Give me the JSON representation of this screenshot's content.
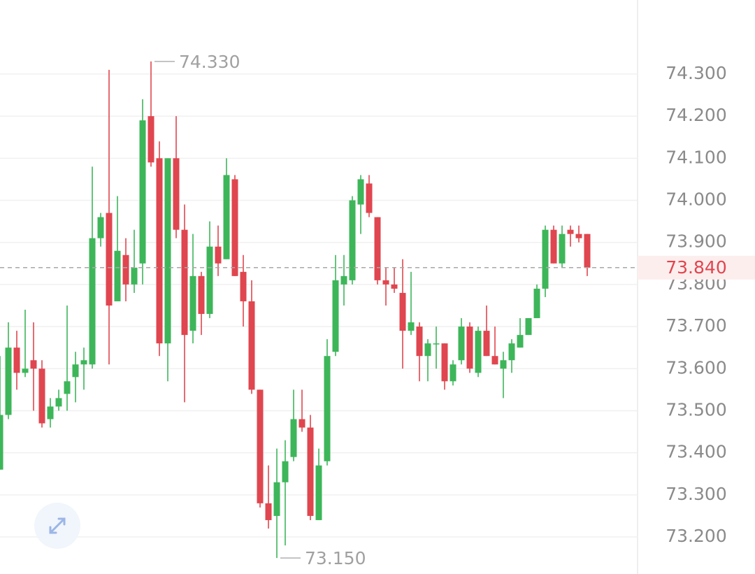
{
  "chart_data": {
    "type": "candlestick",
    "open": [
      73.36,
      73.49,
      73.65,
      73.59,
      73.62,
      73.6,
      73.48,
      73.51,
      73.54,
      73.58,
      73.61,
      73.61,
      73.91,
      73.97,
      73.76,
      73.87,
      73.8,
      73.85,
      74.2,
      74.1,
      73.66,
      74.1,
      73.93,
      73.69,
      73.82,
      73.73,
      73.89,
      73.86,
      74.05,
      73.83,
      73.76,
      73.55,
      73.28,
      73.25,
      73.33,
      73.39,
      73.48,
      73.46,
      73.24,
      73.38,
      73.64,
      73.8,
      73.81,
      73.99,
      74.04,
      73.96,
      73.81,
      73.8,
      73.78,
      73.69,
      73.7,
      73.63,
      73.66,
      73.66,
      73.57,
      73.62,
      73.7,
      73.59,
      73.69,
      73.63,
      73.6,
      73.62,
      73.65,
      73.68,
      73.72,
      73.79,
      73.93,
      73.85,
      73.93,
      73.92,
      73.92
    ],
    "high": [
      73.63,
      73.71,
      73.69,
      73.74,
      73.71,
      73.62,
      73.53,
      73.55,
      73.75,
      73.64,
      73.65,
      74.08,
      73.97,
      74.31,
      74.01,
      73.91,
      73.93,
      74.24,
      74.33,
      74.14,
      74.1,
      74.2,
      73.99,
      73.92,
      73.83,
      73.95,
      73.94,
      74.1,
      74.06,
      73.87,
      73.81,
      73.55,
      73.37,
      73.41,
      73.43,
      73.55,
      73.55,
      73.49,
      73.41,
      73.67,
      73.87,
      73.87,
      74.01,
      74.06,
      74.06,
      73.96,
      73.84,
      73.84,
      73.86,
      73.83,
      73.71,
      73.67,
      73.7,
      73.66,
      73.62,
      73.72,
      73.71,
      73.7,
      73.75,
      73.7,
      73.64,
      73.67,
      73.72,
      73.72,
      73.8,
      73.94,
      73.94,
      73.94,
      73.94,
      73.94,
      73.92
    ],
    "low": [
      73.36,
      73.48,
      73.55,
      73.58,
      73.5,
      73.46,
      73.46,
      73.5,
      73.5,
      73.52,
      73.55,
      73.6,
      73.89,
      73.61,
      73.76,
      73.76,
      73.78,
      73.8,
      74.08,
      73.63,
      73.57,
      73.91,
      73.52,
      73.66,
      73.68,
      73.72,
      73.82,
      73.86,
      73.82,
      73.7,
      73.54,
      73.27,
      73.22,
      73.15,
      73.18,
      73.38,
      73.45,
      73.24,
      73.24,
      73.37,
      73.63,
      73.75,
      73.8,
      73.92,
      73.96,
      73.8,
      73.75,
      73.78,
      73.6,
      73.68,
      73.57,
      73.57,
      73.6,
      73.55,
      73.56,
      73.61,
      73.59,
      73.58,
      73.63,
      73.61,
      73.53,
      73.59,
      73.65,
      73.68,
      73.72,
      73.77,
      73.85,
      73.84,
      73.89,
      73.9,
      73.82
    ],
    "close": [
      73.49,
      73.65,
      73.59,
      73.6,
      73.6,
      73.47,
      73.51,
      73.53,
      73.57,
      73.61,
      73.62,
      73.91,
      73.96,
      73.75,
      73.88,
      73.8,
      73.84,
      74.19,
      74.09,
      73.66,
      74.1,
      73.93,
      73.68,
      73.82,
      73.73,
      73.89,
      73.85,
      74.06,
      73.82,
      73.76,
      73.55,
      73.28,
      73.24,
      73.33,
      73.38,
      73.48,
      73.46,
      73.25,
      73.37,
      73.63,
      73.81,
      73.82,
      74.0,
      74.05,
      73.97,
      73.81,
      73.8,
      73.79,
      73.69,
      73.71,
      73.63,
      73.66,
      73.66,
      73.57,
      73.61,
      73.7,
      73.6,
      73.69,
      73.63,
      73.61,
      73.62,
      73.66,
      73.68,
      73.72,
      73.79,
      73.93,
      73.85,
      73.92,
      73.92,
      73.91,
      73.84
    ],
    "up_color": "#3db65a",
    "down_color": "#e0464f",
    "ylim": [
      73.112,
      74.476
    ],
    "yticks": [
      {
        "value": 74.3,
        "label": "74.300"
      },
      {
        "value": 74.2,
        "label": "74.200"
      },
      {
        "value": 74.1,
        "label": "74.100"
      },
      {
        "value": 74.0,
        "label": "74.000"
      },
      {
        "value": 73.9,
        "label": "73.900"
      },
      {
        "value": 73.8,
        "label": "73.800"
      },
      {
        "value": 73.7,
        "label": "73.700"
      },
      {
        "value": 73.6,
        "label": "73.600"
      },
      {
        "value": 73.5,
        "label": "73.500"
      },
      {
        "value": 73.4,
        "label": "73.400"
      },
      {
        "value": 73.3,
        "label": "73.300"
      },
      {
        "value": 73.2,
        "label": "73.200"
      }
    ],
    "grid": true,
    "high_label": {
      "value": 74.33,
      "label": "74.330"
    },
    "low_label": {
      "value": 73.15,
      "label": "73.150"
    },
    "last_price": {
      "value": 73.84,
      "label": "73.840"
    }
  }
}
